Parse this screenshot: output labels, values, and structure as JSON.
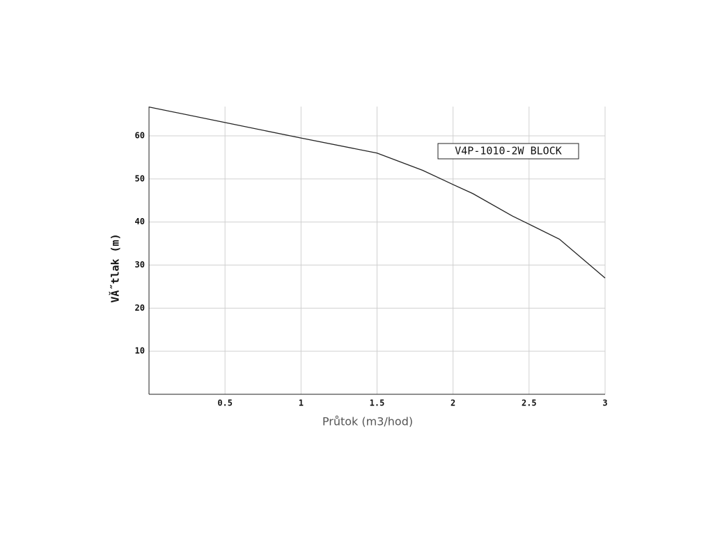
{
  "chart_data": {
    "type": "line",
    "x_label": "Průtok (m3/hod)",
    "y_label": "VĂ˝tlak (m)",
    "x": [
      0,
      0.5,
      1,
      1.5,
      1.8,
      2,
      2.13,
      2.39,
      2.5,
      2.7,
      3
    ],
    "series": [
      {
        "name": "V4P-1010-2W BLOCK",
        "color": "#222222",
        "values": [
          66.7,
          63.1,
          59.5,
          56,
          52,
          48.7,
          46.6,
          41.4,
          39.5,
          36,
          27
        ]
      }
    ],
    "xlim": [
      0,
      3
    ],
    "xticks": [
      0.5,
      1,
      1.5,
      2,
      2.5,
      3
    ],
    "ylim": [
      0,
      66.8
    ],
    "yticks": [
      10,
      20,
      30,
      40,
      50,
      60
    ],
    "grid": true,
    "legend_position": "upper right"
  }
}
